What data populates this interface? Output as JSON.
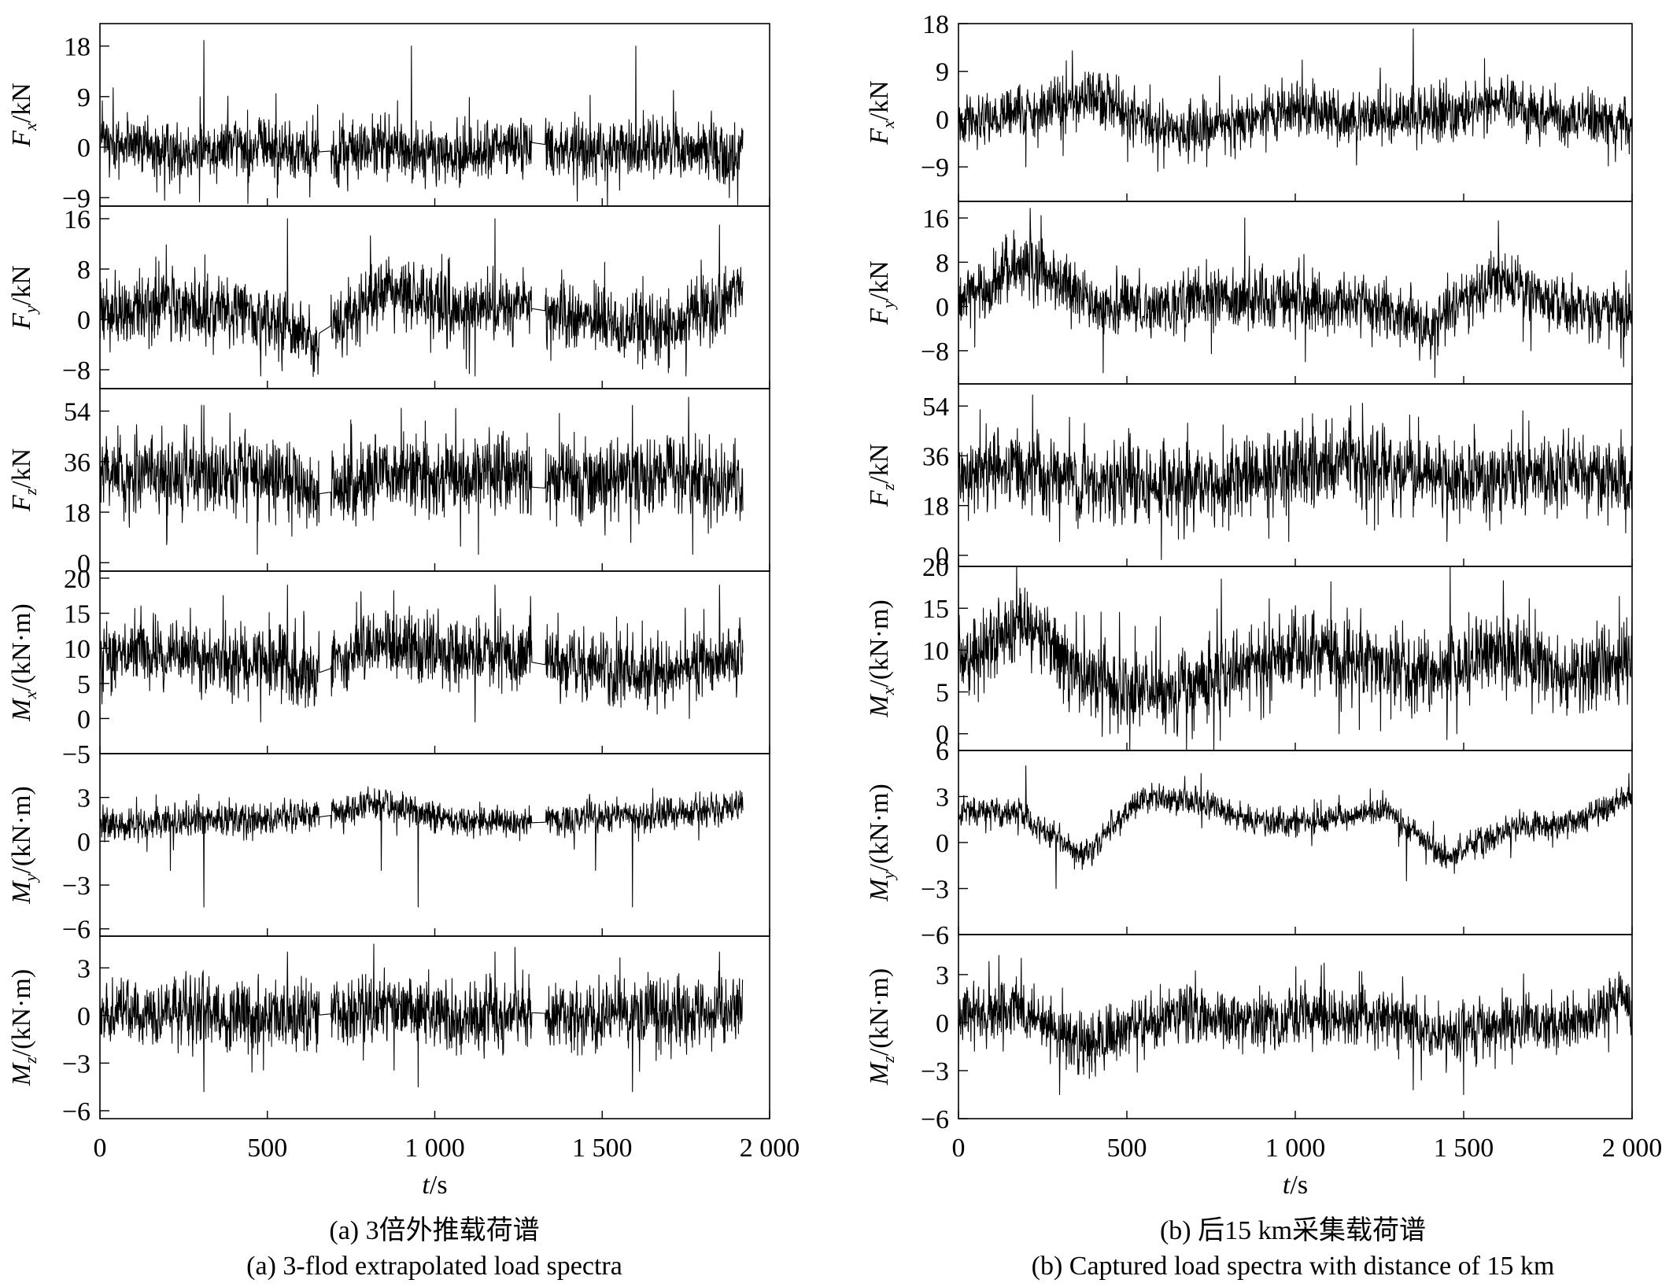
{
  "chart_data": [
    {
      "type": "line",
      "panel": "a",
      "caption_cn": "(a) 3倍外推载荷谱",
      "caption_en": "(a) 3-flod extrapolated load spectra",
      "xlabel_var": "t",
      "xlabel_unit": "/s",
      "xlim": [
        0,
        2000
      ],
      "xticks": [
        0,
        500,
        1000,
        1500,
        2000
      ],
      "xtick_labels": [
        "0",
        "500",
        "1 000",
        "1 500",
        "2 000"
      ],
      "signal_end": 1920,
      "flat_segments": [
        [
          655,
          690
        ],
        [
          1290,
          1330
        ]
      ],
      "subplots": [
        {
          "sym": "F",
          "sub": "x",
          "unit": "/kN",
          "ylim": [
            -10.5,
            22
          ],
          "yticks": [
            -9,
            0,
            9,
            18
          ],
          "base": [
            1,
            -1,
            0.5,
            -1,
            0,
            -2,
            1,
            -1,
            0.5,
            -2
          ],
          "noise": 3,
          "spikes": [
            [
              310,
              19
            ],
            [
              930,
              18
            ],
            [
              1600,
              18
            ],
            [
              170,
              -8
            ],
            [
              530,
              -9
            ],
            [
              1880,
              -9
            ]
          ]
        },
        {
          "sym": "F",
          "sub": "y",
          "unit": "/kN",
          "ylim": [
            -11,
            18
          ],
          "yticks": [
            -8,
            0,
            8,
            16
          ],
          "base": [
            1,
            2,
            1,
            -3,
            5,
            1,
            2,
            0,
            -2,
            5
          ],
          "noise": 3,
          "spikes": [
            [
              560,
              16
            ],
            [
              1180,
              16
            ],
            [
              1850,
              15
            ],
            [
              480,
              -9
            ],
            [
              1120,
              -9
            ],
            [
              1750,
              -9
            ]
          ]
        },
        {
          "sym": "F",
          "sub": "z",
          "unit": "/kN",
          "ylim": [
            -3,
            62
          ],
          "yticks": [
            0,
            18,
            36,
            54
          ],
          "base": [
            32,
            30,
            33,
            27,
            31,
            32,
            30,
            28,
            33,
            29
          ],
          "noise": 8,
          "spikes": [
            [
              310,
              56
            ],
            [
              900,
              55
            ],
            [
              1590,
              56
            ],
            [
              470,
              3
            ],
            [
              1130,
              3
            ],
            [
              1770,
              3
            ]
          ]
        },
        {
          "sym": "M",
          "sub": "x",
          "unit": "/(kN·m)",
          "ylim": [
            -5,
            21
          ],
          "yticks": [
            -5,
            0,
            5,
            10,
            15,
            20
          ],
          "base": [
            9,
            9,
            8,
            7,
            11,
            9,
            9,
            7,
            6,
            10
          ],
          "noise": 2.8,
          "spikes": [
            [
              560,
              19
            ],
            [
              1180,
              19
            ],
            [
              1850,
              19
            ],
            [
              480,
              -0.5
            ],
            [
              1120,
              -0.5
            ],
            [
              1760,
              0
            ]
          ]
        },
        {
          "sym": "M",
          "sub": "y",
          "unit": "/(kN·m)",
          "ylim": [
            -6.5,
            6
          ],
          "yticks": [
            -6,
            -3,
            0,
            3
          ],
          "base": [
            1,
            1.3,
            1.5,
            1.8,
            2.5,
            1.4,
            1.4,
            1.6,
            1.8,
            2.5
          ],
          "noise": 0.6,
          "spikes": [
            [
              310,
              -4.5
            ],
            [
              950,
              -4.5
            ],
            [
              1590,
              -4.5
            ],
            [
              210,
              -2
            ],
            [
              840,
              -2
            ],
            [
              1480,
              -2
            ]
          ]
        },
        {
          "sym": "M",
          "sub": "z",
          "unit": "/(kN·m)",
          "ylim": [
            -6.5,
            5
          ],
          "yticks": [
            -6,
            -3,
            0,
            3
          ],
          "base": [
            0,
            0.3,
            0,
            0,
            0.5,
            0,
            0.2,
            0,
            0,
            0.5
          ],
          "noise": 1.2,
          "spikes": [
            [
              560,
              4
            ],
            [
              1180,
              4
            ],
            [
              1850,
              4
            ],
            [
              310,
              -4.8
            ],
            [
              950,
              -4.5
            ],
            [
              1590,
              -4.8
            ]
          ]
        }
      ]
    },
    {
      "type": "line",
      "panel": "b",
      "caption_cn": "(b) 后15 km采集载荷谱",
      "caption_en": "(b) Captured load spectra with distance of 15 km",
      "xlabel_var": "t",
      "xlabel_unit": "/s",
      "xlim": [
        0,
        2000
      ],
      "xticks": [
        0,
        500,
        1000,
        1500,
        2000
      ],
      "xtick_labels": [
        "0",
        "500",
        "1 000",
        "1 500",
        "2 000"
      ],
      "signal_end": 2000,
      "flat_segments": [],
      "subplots": [
        {
          "sym": "F",
          "sub": "x",
          "unit": "/kN",
          "ylim": [
            -15.5,
            18
          ],
          "yticks": [
            -9,
            0,
            9,
            18
          ],
          "base": [
            0,
            1,
            4,
            -2,
            -1,
            2,
            0,
            1,
            3,
            0,
            -1
          ],
          "noise": 2.8,
          "spikes": [
            [
              1350,
              17
            ],
            [
              320,
              11
            ],
            [
              200,
              -9
            ],
            [
              700,
              -8
            ],
            [
              1950,
              -8
            ]
          ]
        },
        {
          "sym": "F",
          "sub": "y",
          "unit": "/kN",
          "ylim": [
            -14,
            19
          ],
          "yticks": [
            -8,
            0,
            8,
            16
          ],
          "base": [
            1,
            8,
            0,
            0,
            2,
            1,
            0,
            -4,
            6,
            0,
            -1
          ],
          "noise": 3,
          "spikes": [
            [
              850,
              16
            ],
            [
              140,
              13
            ],
            [
              430,
              -12
            ],
            [
              1030,
              -10
            ],
            [
              1700,
              -8
            ]
          ]
        },
        {
          "sym": "F",
          "sub": "z",
          "unit": "/kN",
          "ylim": [
            -4,
            62
          ],
          "yticks": [
            0,
            18,
            36,
            54
          ],
          "base": [
            29,
            30,
            27,
            25,
            26,
            32,
            33,
            29,
            28,
            30,
            28
          ],
          "noise": 8,
          "spikes": [
            [
              220,
              58
            ],
            [
              1200,
              55
            ],
            [
              300,
              5
            ],
            [
              980,
              5
            ],
            [
              1450,
              5
            ]
          ]
        },
        {
          "sym": "M",
          "sub": "x",
          "unit": "/(kN·m)",
          "ylim": [
            -2,
            20
          ],
          "yticks": [
            0,
            5,
            10,
            15,
            20
          ],
          "base": [
            8,
            13,
            6,
            5,
            7,
            10,
            9,
            7,
            10,
            7,
            8
          ],
          "noise": 2.6,
          "spikes": [
            [
              1460,
              20
            ],
            [
              780,
              18.5
            ],
            [
              1480,
              0
            ],
            [
              1130,
              0
            ],
            [
              450,
              0
            ]
          ]
        },
        {
          "sym": "M",
          "sub": "y",
          "unit": "/(kN·m)",
          "ylim": [
            -6,
            6
          ],
          "yticks": [
            -6,
            -3,
            0,
            3,
            6
          ],
          "base": [
            2,
            2,
            -1,
            3,
            2.5,
            1.2,
            1.5,
            2,
            -1,
            1,
            1.2,
            3
          ],
          "noise": 0.5,
          "spikes": [
            [
              200,
              5
            ],
            [
              720,
              4.5
            ],
            [
              1990,
              4.5
            ],
            [
              290,
              -3
            ],
            [
              1330,
              -2.5
            ],
            [
              1640,
              -1
            ]
          ]
        },
        {
          "sym": "M",
          "sub": "z",
          "unit": "/(kN·m)",
          "ylim": [
            -6,
            5.5
          ],
          "yticks": [
            -6,
            -3,
            0,
            3
          ],
          "base": [
            0.5,
            1,
            -1.5,
            0,
            0.5,
            0,
            0.5,
            0.3,
            -1,
            0,
            0,
            1.5
          ],
          "noise": 1,
          "spikes": [
            [
              120,
              4.2
            ],
            [
              1190,
              3.2
            ],
            [
              1350,
              -4.2
            ],
            [
              1500,
              -4.5
            ],
            [
              300,
              -4.5
            ]
          ]
        }
      ]
    }
  ]
}
